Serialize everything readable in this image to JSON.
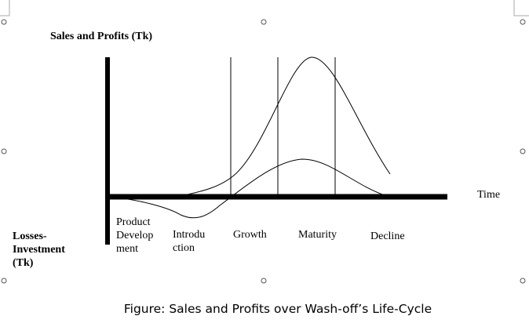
{
  "diagram": {
    "y_axis_top_label": "Sales and Profits (Tk)",
    "x_axis_label": "Time",
    "y_axis_bottom_label": {
      "lines": [
        "Losses-",
        "Investment",
        "(Tk)"
      ]
    },
    "stages": [
      {
        "lines": [
          "Product",
          "Develop",
          "ment"
        ]
      },
      {
        "lines": [
          "Introdu",
          "ction"
        ]
      },
      {
        "lines": [
          "Growth"
        ]
      },
      {
        "lines": [
          "Maturity"
        ]
      },
      {
        "lines": [
          "Decline"
        ]
      }
    ],
    "caption": "Figure: Sales and Profits over Wash-off’s Life-Cycle"
  }
}
